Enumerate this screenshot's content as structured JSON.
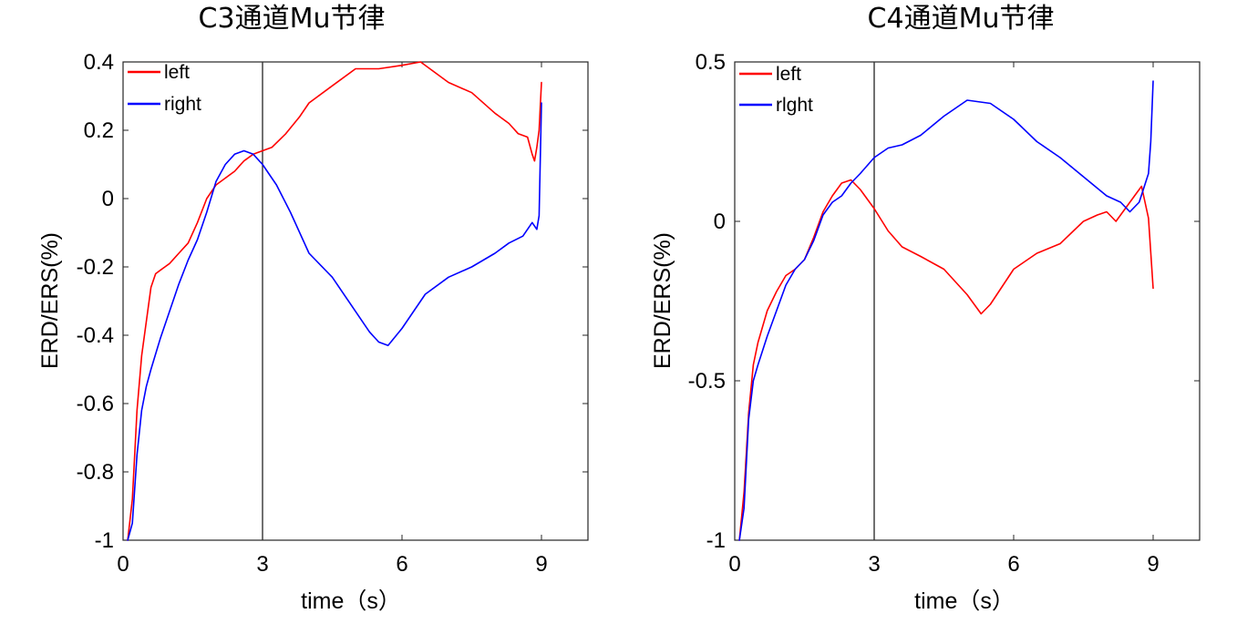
{
  "charts": [
    {
      "title": "C3通道Mu节律",
      "ylabel": "ERD/ERS(%)",
      "xlabel": "time（s）",
      "legend": [
        "left",
        "right"
      ]
    },
    {
      "title": "C4通道Mu节律",
      "ylabel": "ERD/ERS(%)",
      "xlabel": "time（s）",
      "legend": [
        "left",
        "rlght"
      ]
    }
  ],
  "chart_data": [
    {
      "type": "line",
      "title": "C3通道Mu节律",
      "xlabel": "time（s）",
      "ylabel": "ERD/ERS(%)",
      "xlim": [
        0,
        10
      ],
      "ylim": [
        -1,
        0.4
      ],
      "xticks": [
        0,
        3,
        6,
        9
      ],
      "xtick_labels": [
        "0",
        "3",
        "6",
        "9"
      ],
      "yticks": [
        -1,
        -0.8,
        -0.6,
        -0.4,
        -0.2,
        0,
        0.2,
        0.4
      ],
      "ytick_labels": [
        "-1",
        "-0.8",
        "-0.6",
        "-0.4",
        "-0.2",
        "0",
        "0.2",
        "0.4"
      ],
      "vline": 3,
      "grid": false,
      "legend_position": "top-left",
      "series": [
        {
          "name": "left",
          "color": "#ff0000",
          "x": [
            0.1,
            0.2,
            0.3,
            0.4,
            0.5,
            0.6,
            0.7,
            0.8,
            0.9,
            1.0,
            1.2,
            1.4,
            1.6,
            1.8,
            2.0,
            2.2,
            2.4,
            2.6,
            2.8,
            3.0,
            3.2,
            3.5,
            3.8,
            4.0,
            4.5,
            5.0,
            5.5,
            6.0,
            6.4,
            6.6,
            7.0,
            7.5,
            8.0,
            8.3,
            8.5,
            8.7,
            8.8,
            8.85,
            8.9,
            8.95,
            9.0
          ],
          "y": [
            -1.0,
            -0.88,
            -0.62,
            -0.46,
            -0.36,
            -0.26,
            -0.22,
            -0.21,
            -0.2,
            -0.19,
            -0.16,
            -0.13,
            -0.07,
            0.0,
            0.04,
            0.06,
            0.08,
            0.11,
            0.13,
            0.14,
            0.15,
            0.19,
            0.24,
            0.28,
            0.33,
            0.38,
            0.38,
            0.39,
            0.4,
            0.38,
            0.34,
            0.31,
            0.25,
            0.22,
            0.19,
            0.18,
            0.13,
            0.11,
            0.15,
            0.2,
            0.34
          ]
        },
        {
          "name": "right",
          "color": "#0000ff",
          "x": [
            0.1,
            0.2,
            0.3,
            0.4,
            0.5,
            0.6,
            0.8,
            1.0,
            1.2,
            1.4,
            1.6,
            1.8,
            2.0,
            2.2,
            2.4,
            2.6,
            2.8,
            3.0,
            3.3,
            3.6,
            4.0,
            4.5,
            5.0,
            5.3,
            5.5,
            5.7,
            6.0,
            6.5,
            7.0,
            7.5,
            8.0,
            8.3,
            8.6,
            8.8,
            8.9,
            8.95,
            9.0
          ],
          "y": [
            -1.0,
            -0.95,
            -0.75,
            -0.62,
            -0.55,
            -0.5,
            -0.41,
            -0.33,
            -0.25,
            -0.18,
            -0.12,
            -0.04,
            0.05,
            0.1,
            0.13,
            0.14,
            0.13,
            0.1,
            0.04,
            -0.04,
            -0.16,
            -0.23,
            -0.33,
            -0.39,
            -0.42,
            -0.43,
            -0.38,
            -0.28,
            -0.23,
            -0.2,
            -0.16,
            -0.13,
            -0.11,
            -0.07,
            -0.09,
            -0.05,
            0.28
          ]
        }
      ]
    },
    {
      "type": "line",
      "title": "C4通道Mu节律",
      "xlabel": "time（s）",
      "ylabel": "ERD/ERS(%)",
      "xlim": [
        0,
        10
      ],
      "ylim": [
        -1,
        0.5
      ],
      "xticks": [
        0,
        3,
        6,
        9
      ],
      "xtick_labels": [
        "0",
        "3",
        "6",
        "9"
      ],
      "yticks": [
        -1,
        -0.5,
        0,
        0.5
      ],
      "ytick_labels": [
        "-1",
        "-0.5",
        "0",
        "0.5"
      ],
      "vline": 3,
      "grid": false,
      "legend_position": "top-left",
      "series": [
        {
          "name": "left",
          "color": "#ff0000",
          "x": [
            0.1,
            0.2,
            0.3,
            0.4,
            0.5,
            0.7,
            0.9,
            1.1,
            1.3,
            1.5,
            1.7,
            1.9,
            2.1,
            2.3,
            2.5,
            2.7,
            3.0,
            3.3,
            3.6,
            4.0,
            4.5,
            5.0,
            5.3,
            5.5,
            6.0,
            6.5,
            7.0,
            7.5,
            7.8,
            8.0,
            8.2,
            8.4,
            8.6,
            8.75,
            8.9,
            9.0
          ],
          "y": [
            -1.0,
            -0.85,
            -0.6,
            -0.45,
            -0.38,
            -0.28,
            -0.22,
            -0.17,
            -0.15,
            -0.12,
            -0.05,
            0.03,
            0.08,
            0.12,
            0.13,
            0.1,
            0.04,
            -0.03,
            -0.08,
            -0.11,
            -0.15,
            -0.23,
            -0.29,
            -0.26,
            -0.15,
            -0.1,
            -0.07,
            0.0,
            0.02,
            0.03,
            0.0,
            0.04,
            0.08,
            0.11,
            0.01,
            -0.21
          ]
        },
        {
          "name": "rlght",
          "color": "#0000ff",
          "x": [
            0.1,
            0.2,
            0.3,
            0.4,
            0.5,
            0.7,
            0.9,
            1.1,
            1.3,
            1.5,
            1.7,
            1.9,
            2.1,
            2.3,
            2.5,
            2.7,
            3.0,
            3.3,
            3.6,
            4.0,
            4.5,
            5.0,
            5.5,
            6.0,
            6.5,
            7.0,
            7.5,
            8.0,
            8.3,
            8.5,
            8.7,
            8.9,
            8.95,
            9.0
          ],
          "y": [
            -1.0,
            -0.9,
            -0.62,
            -0.5,
            -0.45,
            -0.36,
            -0.28,
            -0.2,
            -0.15,
            -0.12,
            -0.06,
            0.02,
            0.06,
            0.08,
            0.12,
            0.15,
            0.2,
            0.23,
            0.24,
            0.27,
            0.33,
            0.38,
            0.37,
            0.32,
            0.25,
            0.2,
            0.14,
            0.08,
            0.06,
            0.03,
            0.06,
            0.15,
            0.25,
            0.44
          ]
        }
      ]
    }
  ]
}
